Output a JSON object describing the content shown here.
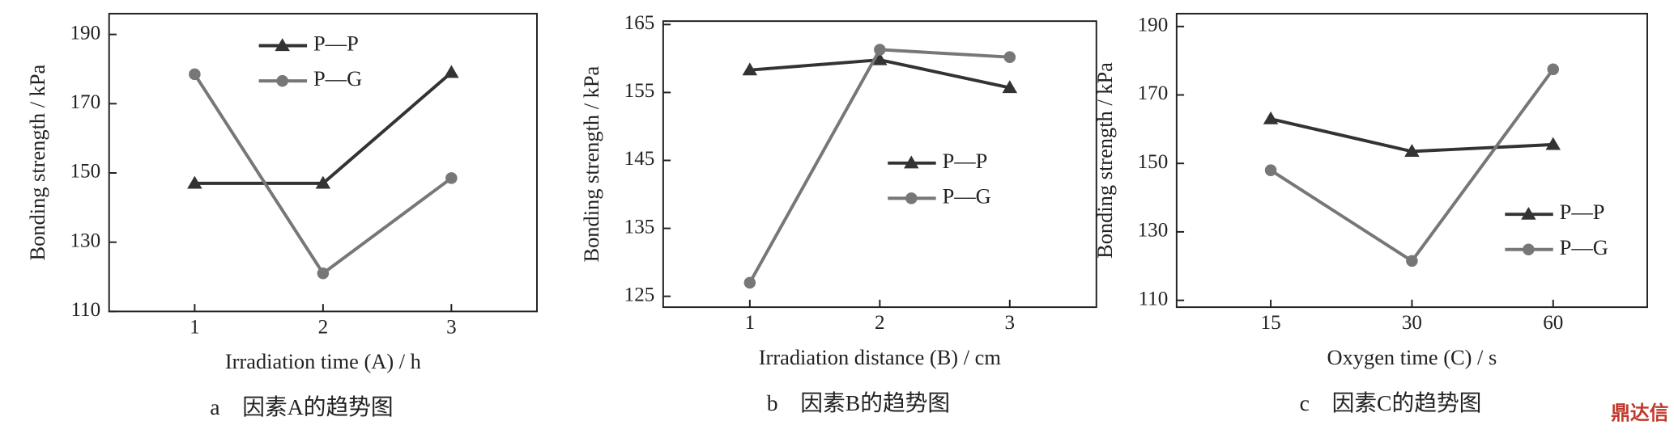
{
  "chart_data": [
    {
      "type": "line",
      "categories": [
        "1",
        "2",
        "3"
      ],
      "xlabel": "Irradiation time (A) / h",
      "ylabel": "Bonding strength / kPa",
      "caption": "a　因素A的趋势图",
      "ylim": [
        110,
        196
      ],
      "yticks": [
        110,
        130,
        150,
        170,
        190
      ],
      "legend": "top",
      "series": [
        {
          "name": "P—P",
          "color": "#333333",
          "marker": "triangle",
          "values": [
            147,
            147,
            179
          ]
        },
        {
          "name": "P—G",
          "color": "#777777",
          "marker": "circle",
          "values": [
            178.5,
            121,
            148.5
          ]
        }
      ]
    },
    {
      "type": "line",
      "categories": [
        "1",
        "2",
        "3"
      ],
      "xlabel": "Irradiation distance (B) / cm",
      "ylabel": "Bonding strength / kPa",
      "caption": "b　因素B的趋势图",
      "ylim": [
        123.4,
        165.5
      ],
      "yticks": [
        125,
        135,
        145,
        155,
        165
      ],
      "legend": "right",
      "series": [
        {
          "name": "P—P",
          "color": "#333333",
          "marker": "triangle",
          "values": [
            158.3,
            159.8,
            155.7
          ]
        },
        {
          "name": "P—G",
          "color": "#777777",
          "marker": "circle",
          "values": [
            127,
            161.3,
            160.2
          ]
        }
      ]
    },
    {
      "type": "line",
      "categories": [
        "15",
        "30",
        "60"
      ],
      "xlabel": "Oxygen time (C) / s",
      "ylabel": "Bonding strength / kPa",
      "caption": "c　因素C的趋势图",
      "ylim": [
        108,
        193.75
      ],
      "yticks": [
        110,
        130,
        150,
        170,
        190
      ],
      "legend": "lower-right",
      "series": [
        {
          "name": "P—P",
          "color": "#333333",
          "marker": "triangle",
          "values": [
            163,
            153.5,
            155.5
          ]
        },
        {
          "name": "P—G",
          "color": "#777777",
          "marker": "circle",
          "values": [
            148,
            121.5,
            177.5
          ]
        }
      ]
    }
  ],
  "watermark": "鼎达信"
}
